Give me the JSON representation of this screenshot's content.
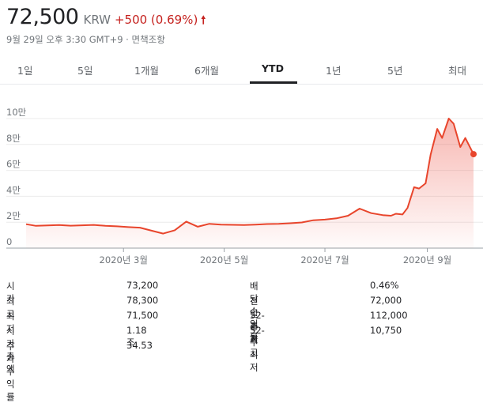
{
  "quote": {
    "price": "72,500",
    "currency": "KRW",
    "change": "+500 (0.69%)",
    "change_icon": "up-arrow-icon",
    "timestamp": "9월 29일 오후 3:30 GMT+9 · 면책조항",
    "accent_color": "#c5221f"
  },
  "tabs": [
    {
      "label": "1일"
    },
    {
      "label": "5일"
    },
    {
      "label": "1개월"
    },
    {
      "label": "6개월"
    },
    {
      "label": "YTD",
      "active": true
    },
    {
      "label": "1년"
    },
    {
      "label": "5년"
    },
    {
      "label": "최대"
    }
  ],
  "chart_data": {
    "type": "area",
    "line_color": "#e8452c",
    "ylim": [
      0,
      110000
    ],
    "y_ticks": [
      0,
      20000,
      40000,
      60000,
      80000,
      100000
    ],
    "y_tick_labels": [
      "0",
      "2만",
      "4만",
      "6만",
      "8만",
      "10만"
    ],
    "x_ticks": [
      "2020-03-01",
      "2020-05-01",
      "2020-07-01",
      "2020-09-01"
    ],
    "x_tick_labels": [
      "2020년 3월",
      "2020년 5월",
      "2020년 7월",
      "2020년 9월"
    ],
    "grid": true,
    "series": [
      {
        "x": [
          "2020-01-02",
          "2020-01-08",
          "2020-01-15",
          "2020-01-22",
          "2020-01-29",
          "2020-02-05",
          "2020-02-12",
          "2020-02-19",
          "2020-02-26",
          "2020-03-04",
          "2020-03-11",
          "2020-03-18",
          "2020-03-25",
          "2020-04-01",
          "2020-04-08",
          "2020-04-15",
          "2020-04-22",
          "2020-04-29",
          "2020-05-06",
          "2020-05-13",
          "2020-05-20",
          "2020-05-27",
          "2020-06-03",
          "2020-06-10",
          "2020-06-17",
          "2020-06-24",
          "2020-07-01",
          "2020-07-08",
          "2020-07-15",
          "2020-07-22",
          "2020-07-29",
          "2020-08-05",
          "2020-08-10",
          "2020-08-13",
          "2020-08-17",
          "2020-08-20",
          "2020-08-24",
          "2020-08-27",
          "2020-08-31",
          "2020-09-03",
          "2020-09-07",
          "2020-09-10",
          "2020-09-14",
          "2020-09-17",
          "2020-09-21",
          "2020-09-24",
          "2020-09-29"
        ],
        "values": [
          18500,
          17200,
          17500,
          17800,
          17300,
          17600,
          17900,
          17200,
          16800,
          16200,
          15800,
          13500,
          11200,
          13800,
          20500,
          16500,
          18800,
          18200,
          18000,
          17800,
          18200,
          18600,
          18700,
          19200,
          19800,
          21500,
          22000,
          23000,
          25000,
          30500,
          27000,
          25500,
          25000,
          26500,
          26000,
          31000,
          47000,
          46000,
          50000,
          72000,
          92000,
          85000,
          100000,
          96000,
          78000,
          85000,
          72500
        ]
      }
    ]
  },
  "stats": {
    "left": [
      {
        "label": "시가",
        "value": "73,200"
      },
      {
        "label": "최고",
        "value": "78,300"
      },
      {
        "label": "최저",
        "value": "71,500"
      },
      {
        "label": "시가총액",
        "value": "1.18조"
      },
      {
        "label": "주가수익률",
        "value": "34.53"
      }
    ],
    "right": [
      {
        "label": "배당수익률",
        "value": "0.46%"
      },
      {
        "label": "전일 종가",
        "value": "72,000"
      },
      {
        "label": "52-주 최고",
        "value": "112,000"
      },
      {
        "label": "52-주 최저",
        "value": "10,750"
      }
    ]
  }
}
